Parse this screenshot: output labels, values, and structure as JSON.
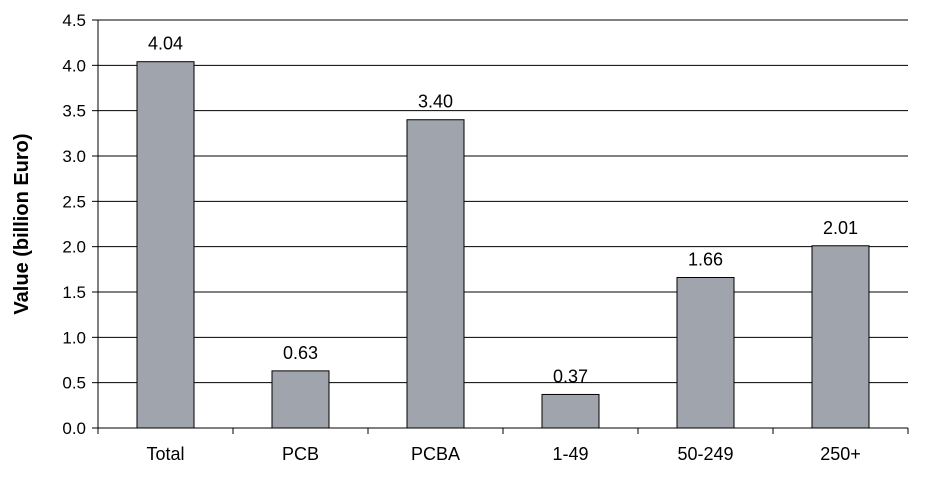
{
  "chart_data": {
    "type": "bar",
    "title": "",
    "xlabel": "",
    "ylabel": "Value (billion Euro)",
    "categories": [
      "Total",
      "PCB",
      "PCBA",
      "1-49",
      "50-249",
      "250+"
    ],
    "values": [
      4.04,
      0.63,
      3.4,
      0.37,
      1.66,
      2.01
    ],
    "value_labels": [
      "4.04",
      "0.63",
      "3.40",
      "0.37",
      "1.66",
      "2.01"
    ],
    "ylim": [
      0,
      4.5
    ],
    "yticks": [
      0.0,
      0.5,
      1.0,
      1.5,
      2.0,
      2.5,
      3.0,
      3.5,
      4.0,
      4.5
    ],
    "ytick_labels": [
      "0.0",
      "0.5",
      "1.0",
      "1.5",
      "2.0",
      "2.5",
      "3.0",
      "3.5",
      "4.0",
      "4.5"
    ],
    "grid": true,
    "legend": "none",
    "bar_color": "#a0a4ac",
    "bar_stroke": "#000000",
    "grid_color": "#000000"
  }
}
